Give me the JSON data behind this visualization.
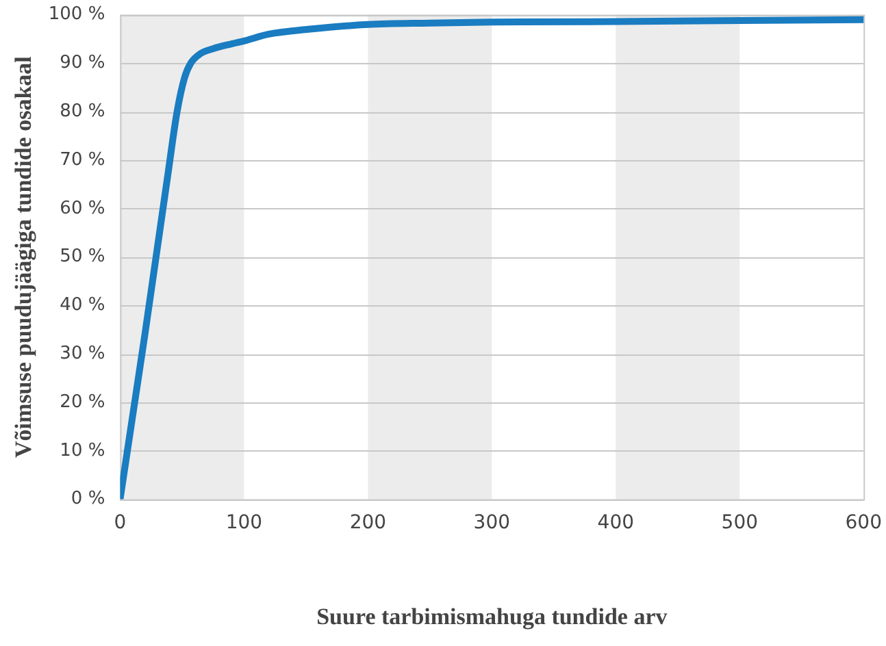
{
  "chart_data": {
    "type": "line",
    "xlabel": "Suure tarbimismahuga tundide arv",
    "ylabel": "Võimsuse puudujäägiga tundide osakaal",
    "series": [
      {
        "color": "#1a7cc1",
        "x": [
          0,
          10,
          20,
          29,
          38,
          46,
          52,
          57,
          65,
          75,
          90,
          100,
          120,
          152,
          200,
          250,
          300,
          400,
          500,
          600
        ],
        "values": [
          0,
          17,
          34,
          50,
          66,
          80,
          87,
          90,
          92,
          93,
          94,
          94.6,
          96,
          97,
          98,
          98.3,
          98.5,
          98.6,
          98.8,
          99
        ]
      }
    ],
    "xlim": [
      0,
      600
    ],
    "xticks": [
      0,
      100,
      200,
      300,
      400,
      500,
      600
    ],
    "ylim": [
      0,
      100
    ],
    "yticks": [
      {
        "value": 0,
        "label": "0 %"
      },
      {
        "value": 10,
        "label": "10 %"
      },
      {
        "value": 20,
        "label": "20 %"
      },
      {
        "value": 30,
        "label": "30 %"
      },
      {
        "value": 40,
        "label": "40 %"
      },
      {
        "value": 50,
        "label": "50 %"
      },
      {
        "value": 60,
        "label": "60 %"
      },
      {
        "value": 70,
        "label": "70 %"
      },
      {
        "value": 80,
        "label": "80 %"
      },
      {
        "value": 90,
        "label": "90 %"
      },
      {
        "value": 100,
        "label": "100 %"
      }
    ],
    "grid": "y",
    "marker": "none",
    "line_style": "solid",
    "legend": false,
    "bands": [
      {
        "axis": "x",
        "from": 0,
        "to": 100,
        "color": "#ececec"
      },
      {
        "axis": "x",
        "from": 200,
        "to": 300,
        "color": "#ececec"
      },
      {
        "axis": "x",
        "from": 400,
        "to": 500,
        "color": "#ececec"
      }
    ]
  }
}
